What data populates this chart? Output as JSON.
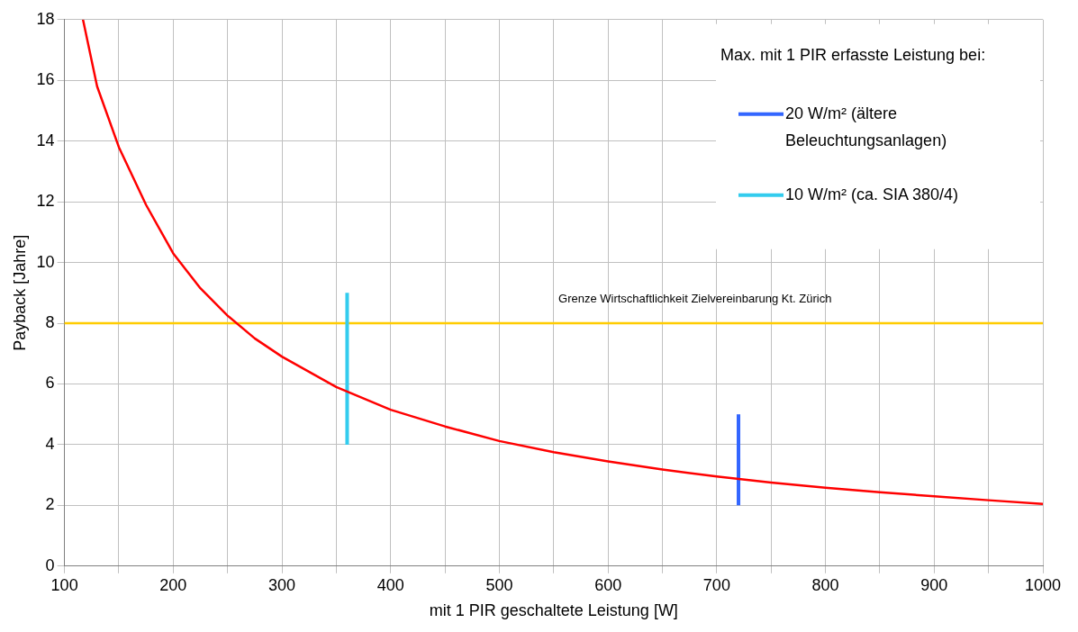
{
  "chart_data": {
    "type": "line",
    "xlabel": "mit 1 PIR geschaltete Leistung [W]",
    "ylabel": "Payback [Jahre]",
    "legend_title": "Max. mit 1 PIR erfasste Leistung bei:",
    "xlim": [
      100,
      1000
    ],
    "ylim": [
      0,
      18
    ],
    "xticks": [
      100,
      {
        "value": 150,
        "label": null
      },
      200,
      {
        "value": 250,
        "label": null
      },
      300,
      {
        "value": 350,
        "label": null
      },
      400,
      {
        "value": 450,
        "label": null
      },
      500,
      {
        "value": 550,
        "label": null
      },
      600,
      {
        "value": 650,
        "label": null
      },
      700,
      {
        "value": 750,
        "label": null
      },
      800,
      {
        "value": 850,
        "label": null
      },
      900,
      {
        "value": 950,
        "label": null
      },
      1000
    ],
    "yticks": [
      0,
      2,
      4,
      6,
      8,
      10,
      12,
      14,
      16,
      18
    ],
    "grid": true,
    "legend": "top right",
    "marker": "none",
    "line_style": "solid",
    "series": [
      {
        "color": "#ff0000",
        "x": [
          117,
          130,
          150,
          175,
          200,
          225,
          250,
          275,
          300,
          350,
          400,
          450,
          500,
          550,
          600,
          650,
          700,
          750,
          800,
          850,
          900,
          950,
          1000
        ],
        "values": [
          18,
          15.8,
          13.8,
          11.9,
          10.3,
          9.15,
          8.25,
          7.5,
          6.9,
          5.9,
          5.15,
          4.6,
          4.12,
          3.75,
          3.45,
          3.18,
          2.95,
          2.75,
          2.58,
          2.43,
          2.3,
          2.17,
          2.05
        ]
      },
      {
        "name": "20 W/m² (ältere Beleuchtungsanlagen)",
        "color": "#3366ff",
        "x": [
          720,
          720
        ],
        "values": [
          2,
          5
        ]
      },
      {
        "name": "10 W/m² (ca. SIA 380/4)",
        "color": "#33ccee",
        "x": [
          360,
          360
        ],
        "values": [
          4,
          9
        ]
      }
    ],
    "ref_lines": [
      {
        "axis": "y",
        "value": 8,
        "label": "Grenze Wirtschaftlichkeit Zielvereinbarung Kt. Zürich",
        "color": "#ffcc00"
      }
    ]
  }
}
